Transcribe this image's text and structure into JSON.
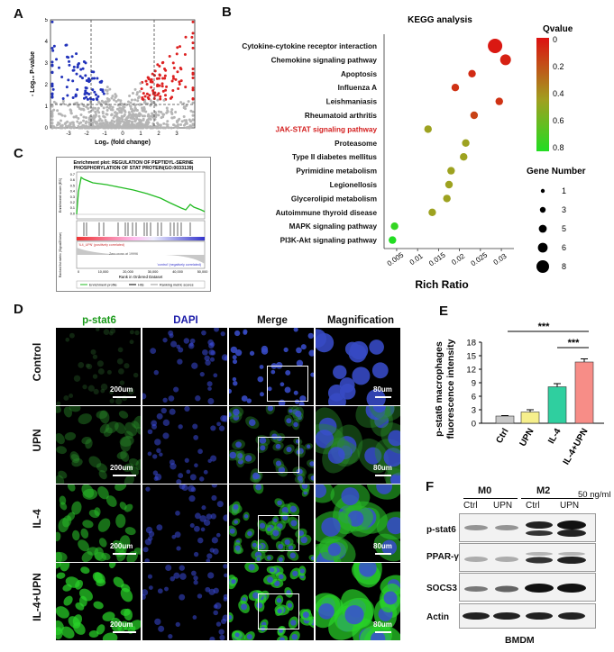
{
  "panels": {
    "a": "A",
    "b": "B",
    "c": "C",
    "d": "D",
    "e": "E",
    "f": "F"
  },
  "volcano": {
    "ylabel": "- Log₁₀ P-value",
    "xlabel": "Log₂ (fold change)",
    "xticks": [
      "-3",
      "-2",
      "-1",
      "0",
      "1",
      "2",
      "3"
    ],
    "yticks": [
      "0",
      "1",
      "2",
      "3",
      "4",
      "5"
    ],
    "colors": {
      "down": "#2233bb",
      "up": "#dd2222",
      "ns": "#b5b5b5"
    }
  },
  "kegg": {
    "title": "KEGG analysis",
    "xlabel": "Rich Ratio",
    "qvalue_title": "Qvalue",
    "qvalue_ticks": [
      "0",
      "0.2",
      "0.4",
      "0.6",
      "0.8"
    ],
    "gene_title": "Gene Number",
    "gene_sizes": [
      "1",
      "3",
      "5",
      "6",
      "8"
    ],
    "highlight_color": "#d42020"
  },
  "gsea": {
    "title_line1": "Enrichment plot: REGULATION OF PEPTIDYL-SERINE",
    "title_line2": "PHOSPHORYLATION OF STAT PROTEIN(GO:0033139)",
    "y_top": "Enrichment score (ES)",
    "y_bottom": "Ranked list metric (Signal2Noise)",
    "x_label": "Rank in Ordered Dataset",
    "pos_label": "'IL4_UPN' (positively correlated)",
    "neg_label": "'control' (negatively correlated)",
    "zero_label": "Zero cross at 19996",
    "legend": [
      "Enrichment profile",
      "Hits",
      "Ranking metric scores"
    ],
    "xticks": [
      "0",
      "10,000",
      "20,000",
      "30,000",
      "40,000",
      "50,000"
    ],
    "yticks": [
      "0.7",
      "0.6",
      "0.5",
      "0.4",
      "0.3",
      "0.2",
      "0.1",
      "0.0"
    ]
  },
  "micro": {
    "columns": [
      "p-stat6",
      "DAPI",
      "Merge",
      "Magnification"
    ],
    "rows": [
      "Control",
      "UPN",
      "IL-4",
      "IL-4+UPN"
    ],
    "scale_main": "200um",
    "scale_mag": "80um",
    "colors": {
      "green": "#1a9a1a",
      "blue": "#1a1aa8"
    }
  },
  "bar": {
    "ylabel_line1": "p-stat6 macrophages",
    "ylabel_line2": "fluorescence intensity",
    "sig": [
      "***",
      "***"
    ]
  },
  "western": {
    "groups": [
      "M0",
      "M2"
    ],
    "lanes": [
      "Ctrl",
      "UPN",
      "Ctrl",
      "UPN"
    ],
    "dose": "50  ng/ml",
    "proteins": [
      "p-stat6",
      "PPAR-γ",
      "SOCS3",
      "Actin"
    ],
    "footer": "BMDM"
  },
  "chart_data": [
    {
      "type": "scatter",
      "panel": "A",
      "xlabel": "Log₂ (fold change)",
      "ylabel": "- Log₁₀ P-value",
      "xlim": [
        -4,
        4
      ],
      "ylim": [
        0,
        5
      ],
      "thresholds": {
        "x": [
          -1,
          1
        ],
        "y": 1.3
      },
      "series": [
        {
          "values": "points with log2FC < -1 and p<0.05"
        },
        {
          "values": "points with log2FC > 1 and p<0.05"
        }
      ]
    },
    {
      "type": "scatter",
      "panel": "B",
      "title": "KEGG analysis",
      "xlabel": "Rich Ratio",
      "xlim": [
        0.002,
        0.033
      ],
      "xticks": [
        0.005,
        0.01,
        0.015,
        0.02,
        0.025,
        0.03
      ],
      "categories": [
        "Cytokine-cytokine receptor interaction",
        "Chemokine signaling pathway",
        "Apoptosis",
        "Influenza A",
        "Leishmaniasis",
        "Rheumatoid arthritis",
        "JAK-STAT signaling pathway",
        "Proteasome",
        "Type II diabetes mellitus",
        "Pyrimidine metabolism",
        "Legionellosis",
        "Glycerolipid metabolism",
        "Autoimmune thyroid disease",
        "MAPK signaling pathway",
        "PI3K-Akt signaling pathway"
      ],
      "rich_ratio": [
        0.0285,
        0.031,
        0.023,
        0.019,
        0.0295,
        0.0235,
        0.0125,
        0.0215,
        0.021,
        0.018,
        0.0175,
        0.017,
        0.0135,
        0.0045,
        0.004
      ],
      "qvalue": [
        0.02,
        0.05,
        0.08,
        0.1,
        0.1,
        0.15,
        0.45,
        0.45,
        0.45,
        0.45,
        0.45,
        0.45,
        0.45,
        0.75,
        0.8
      ],
      "gene_number": [
        8,
        6,
        3,
        3,
        3,
        3,
        3,
        3,
        3,
        3,
        3,
        3,
        3,
        3,
        3
      ]
    },
    {
      "type": "bar",
      "panel": "E",
      "categories": [
        "Ctrl",
        "UPN",
        "IL-4",
        "IL-4+UPN"
      ],
      "values": [
        1.6,
        2.5,
        8.1,
        13.6
      ],
      "errors": [
        0.1,
        0.5,
        0.7,
        0.7
      ],
      "colors": [
        "#c8c8c8",
        "#f6ef8c",
        "#2fcf9f",
        "#f78d87"
      ],
      "ylabel": "p-stat6 macrophages fluorescence intensity",
      "ylim": [
        0,
        18
      ],
      "yticks": [
        0,
        3,
        6,
        9,
        12,
        15,
        18
      ]
    }
  ]
}
